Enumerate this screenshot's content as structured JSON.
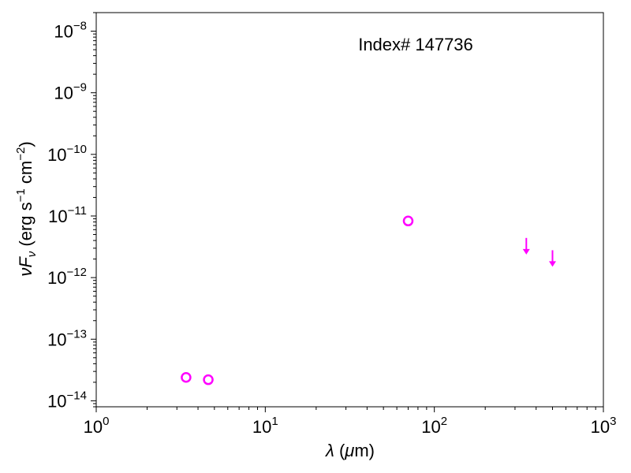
{
  "chart_data": {
    "type": "scatter",
    "x_scale": "log",
    "y_scale": "log",
    "xlim": [
      1,
      1000
    ],
    "ylim": [
      8e-15,
      2e-08
    ],
    "x_tick_values": [
      1,
      10,
      100,
      1000
    ],
    "x_tick_labels": [
      {
        "base": "10",
        "exp": "0"
      },
      {
        "base": "10",
        "exp": "1"
      },
      {
        "base": "10",
        "exp": "2"
      },
      {
        "base": "10",
        "exp": "3"
      }
    ],
    "y_tick_values": [
      1e-14,
      1e-13,
      1e-12,
      1e-11,
      1e-10,
      1e-09,
      1e-08
    ],
    "y_tick_labels": [
      {
        "base": "10",
        "exp": "−14"
      },
      {
        "base": "10",
        "exp": "−13"
      },
      {
        "base": "10",
        "exp": "−12"
      },
      {
        "base": "10",
        "exp": "−11"
      },
      {
        "base": "10",
        "exp": "−10"
      },
      {
        "base": "10",
        "exp": "−9"
      },
      {
        "base": "10",
        "exp": "−8"
      }
    ],
    "xlabel": {
      "symbol": "λ",
      "rest": " (",
      "mu": "μ",
      "unit": "m)"
    },
    "ylabel": {
      "nu": "ν",
      "F": "F",
      "sub": "ν",
      "pre": " (erg s",
      "e1": "−1",
      "mid": " cm",
      "e2": "−2",
      "post": ")"
    },
    "annotation": "Index# 147736",
    "color": "#ff00ff",
    "detections": [
      {
        "x": 3.4,
        "y": 2.4e-14
      },
      {
        "x": 4.6,
        "y": 2.2e-14
      },
      {
        "x": 70,
        "y": 8.3e-12
      }
    ],
    "upper_limits": [
      {
        "x": 350,
        "y": 3.8e-12
      },
      {
        "x": 500,
        "y": 2.4e-12
      }
    ],
    "grid": false,
    "legend": "none"
  }
}
